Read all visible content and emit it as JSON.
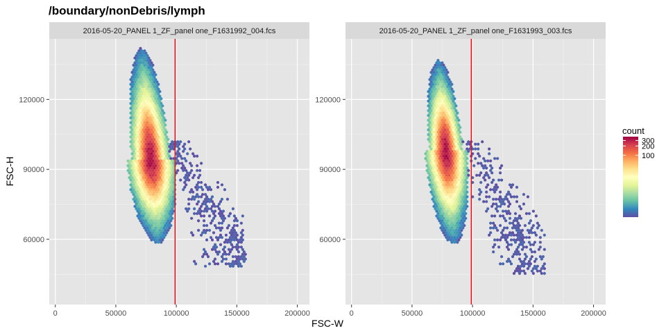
{
  "chart_data": {
    "type": "heatmap",
    "subtype": "hexbin",
    "title": "/boundary/nonDebris/lymph",
    "xlabel": "FSC-W",
    "ylabel": "FSC-H",
    "xlim": [
      -5000,
      210000
    ],
    "ylim": [
      32000,
      146000
    ],
    "x_ticks": [
      0,
      50000,
      100000,
      150000,
      200000
    ],
    "x_tick_labels": [
      "0",
      "50000",
      "100000",
      "150000",
      "200000"
    ],
    "y_ticks": [
      60000,
      90000,
      120000
    ],
    "y_tick_labels": [
      "60000",
      "90000",
      "120000"
    ],
    "panel_background": "#e5e5e5",
    "strip_background": "#d9d9d9",
    "grid": true,
    "gate_line": {
      "x": 99000,
      "color": "#e8111a"
    },
    "legend": {
      "title": "count",
      "position": "right",
      "scale": "log",
      "range": [
        1,
        400
      ],
      "ticks": [
        100,
        200,
        300
      ],
      "tick_labels": [
        "100",
        "200",
        "300"
      ],
      "palette": [
        "#5e4fa2",
        "#3288bd",
        "#66c2a5",
        "#abdda4",
        "#e6f598",
        "#ffffbf",
        "#fee08b",
        "#fdae61",
        "#f46d43",
        "#d53e4f",
        "#9e0142"
      ]
    },
    "panels": [
      {
        "strip": "2016-05-20_PANEL 1_ZF_panel one_F1631992_004.fcs",
        "density": {
          "min_x": 66000,
          "center_x": 79000,
          "peak_y": 94000,
          "top_y": 142000,
          "bottom_y": 58000,
          "tail_end": [
            158000,
            48000
          ]
        }
      },
      {
        "strip": "2016-05-20_PANEL 1_ZF_panel one_F1631993_003.fcs",
        "density": {
          "min_x": 67000,
          "center_x": 78000,
          "peak_y": 98000,
          "top_y": 137000,
          "bottom_y": 58000,
          "tail_end": [
            160000,
            45000
          ]
        }
      }
    ]
  }
}
